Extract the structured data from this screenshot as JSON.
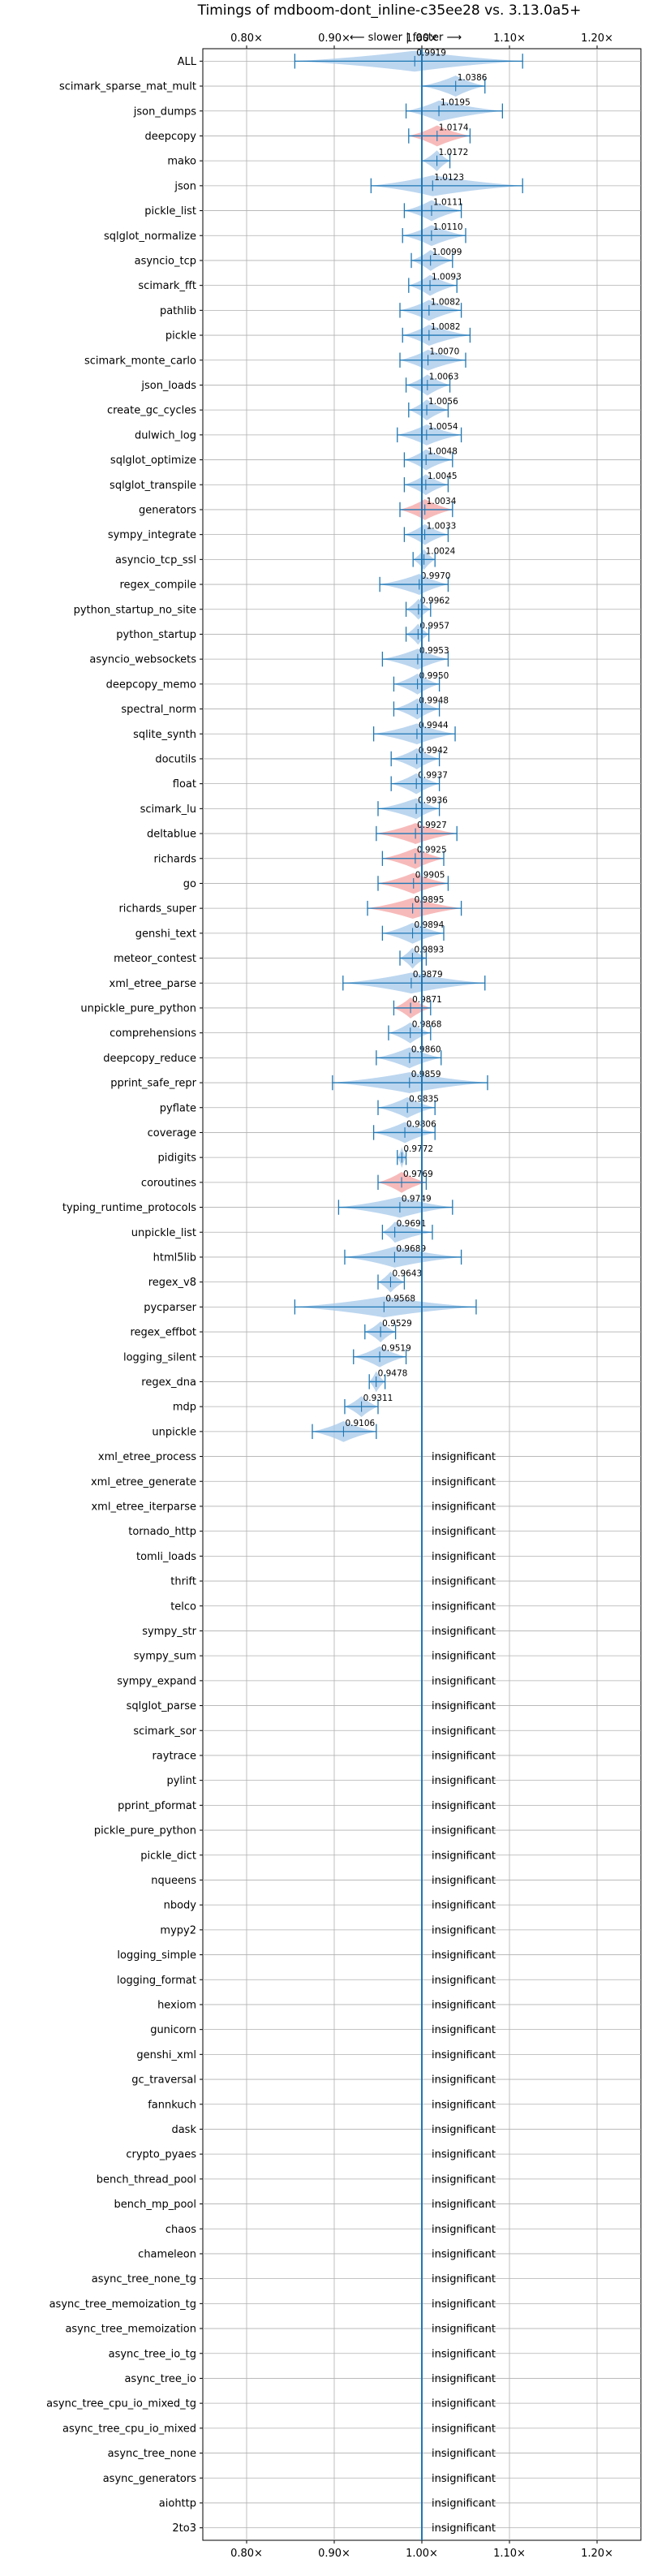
{
  "chart_data": {
    "type": "violin",
    "title": "Timings of mdboom-dont_inline-c35ee28 vs. 3.13.0a5+",
    "direction_label": "⟵ slower | faster ⟶",
    "xlim": [
      0.75,
      1.25
    ],
    "xticks": [
      {
        "value": 0.8,
        "label": "0.80×"
      },
      {
        "value": 0.9,
        "label": "0.90×"
      },
      {
        "value": 1.0,
        "label": "1.00×"
      },
      {
        "value": 1.1,
        "label": "1.10×"
      },
      {
        "value": 1.2,
        "label": "1.20×"
      }
    ],
    "reference_line": 1.0,
    "grid": true,
    "colors": {
      "faster_fill": "#a6c8ea",
      "slower_fill": "#f4a3a3",
      "whisker": "#1f77b4",
      "grid": "#b0b0b0",
      "reference": "#1f77b4"
    },
    "significant": [
      {
        "name": "ALL",
        "value": 0.9919,
        "label": "0.9919",
        "lo": 0.855,
        "hi": 1.115,
        "status": "neutral"
      },
      {
        "name": "scimark_sparse_mat_mult",
        "value": 1.0386,
        "label": "1.0386",
        "lo": 1.0,
        "hi": 1.072,
        "status": "faster"
      },
      {
        "name": "json_dumps",
        "value": 1.0195,
        "label": "1.0195",
        "lo": 0.982,
        "hi": 1.092,
        "status": "faster"
      },
      {
        "name": "deepcopy",
        "value": 1.0174,
        "label": "1.0174",
        "lo": 0.985,
        "hi": 1.055,
        "status": "slower"
      },
      {
        "name": "mako",
        "value": 1.0172,
        "label": "1.0172",
        "lo": 1.0,
        "hi": 1.032,
        "status": "faster"
      },
      {
        "name": "json",
        "value": 1.0123,
        "label": "1.0123",
        "lo": 0.942,
        "hi": 1.115,
        "status": "faster"
      },
      {
        "name": "pickle_list",
        "value": 1.0111,
        "label": "1.0111",
        "lo": 0.98,
        "hi": 1.045,
        "status": "faster"
      },
      {
        "name": "sqlglot_normalize",
        "value": 1.011,
        "label": "1.0110",
        "lo": 0.978,
        "hi": 1.05,
        "status": "faster"
      },
      {
        "name": "asyncio_tcp",
        "value": 1.0099,
        "label": "1.0099",
        "lo": 0.988,
        "hi": 1.035,
        "status": "faster"
      },
      {
        "name": "scimark_fft",
        "value": 1.0093,
        "label": "1.0093",
        "lo": 0.985,
        "hi": 1.04,
        "status": "faster"
      },
      {
        "name": "pathlib",
        "value": 1.0082,
        "label": "1.0082",
        "lo": 0.975,
        "hi": 1.045,
        "status": "faster"
      },
      {
        "name": "pickle",
        "value": 1.0082,
        "label": "1.0082",
        "lo": 0.978,
        "hi": 1.055,
        "status": "faster"
      },
      {
        "name": "scimark_monte_carlo",
        "value": 1.007,
        "label": "1.0070",
        "lo": 0.975,
        "hi": 1.05,
        "status": "faster"
      },
      {
        "name": "json_loads",
        "value": 1.0063,
        "label": "1.0063",
        "lo": 0.982,
        "hi": 1.032,
        "status": "faster"
      },
      {
        "name": "create_gc_cycles",
        "value": 1.0056,
        "label": "1.0056",
        "lo": 0.985,
        "hi": 1.03,
        "status": "faster"
      },
      {
        "name": "dulwich_log",
        "value": 1.0054,
        "label": "1.0054",
        "lo": 0.972,
        "hi": 1.045,
        "status": "faster"
      },
      {
        "name": "sqlglot_optimize",
        "value": 1.0048,
        "label": "1.0048",
        "lo": 0.98,
        "hi": 1.035,
        "status": "faster"
      },
      {
        "name": "sqlglot_transpile",
        "value": 1.0045,
        "label": "1.0045",
        "lo": 0.98,
        "hi": 1.03,
        "status": "faster"
      },
      {
        "name": "generators",
        "value": 1.0034,
        "label": "1.0034",
        "lo": 0.975,
        "hi": 1.035,
        "status": "slower"
      },
      {
        "name": "sympy_integrate",
        "value": 1.0033,
        "label": "1.0033",
        "lo": 0.98,
        "hi": 1.03,
        "status": "faster"
      },
      {
        "name": "asyncio_tcp_ssl",
        "value": 1.0024,
        "label": "1.0024",
        "lo": 0.99,
        "hi": 1.015,
        "status": "faster"
      },
      {
        "name": "regex_compile",
        "value": 0.997,
        "label": "0.9970",
        "lo": 0.952,
        "hi": 1.03,
        "status": "faster"
      },
      {
        "name": "python_startup_no_site",
        "value": 0.9962,
        "label": "0.9962",
        "lo": 0.982,
        "hi": 1.01,
        "status": "faster"
      },
      {
        "name": "python_startup",
        "value": 0.9957,
        "label": "0.9957",
        "lo": 0.982,
        "hi": 1.008,
        "status": "faster"
      },
      {
        "name": "asyncio_websockets",
        "value": 0.9953,
        "label": "0.9953",
        "lo": 0.955,
        "hi": 1.03,
        "status": "faster"
      },
      {
        "name": "deepcopy_memo",
        "value": 0.995,
        "label": "0.9950",
        "lo": 0.968,
        "hi": 1.02,
        "status": "faster"
      },
      {
        "name": "spectral_norm",
        "value": 0.9948,
        "label": "0.9948",
        "lo": 0.968,
        "hi": 1.02,
        "status": "faster"
      },
      {
        "name": "sqlite_synth",
        "value": 0.9944,
        "label": "0.9944",
        "lo": 0.945,
        "hi": 1.038,
        "status": "faster"
      },
      {
        "name": "docutils",
        "value": 0.9942,
        "label": "0.9942",
        "lo": 0.965,
        "hi": 1.02,
        "status": "faster"
      },
      {
        "name": "float",
        "value": 0.9937,
        "label": "0.9937",
        "lo": 0.965,
        "hi": 1.02,
        "status": "faster"
      },
      {
        "name": "scimark_lu",
        "value": 0.9936,
        "label": "0.9936",
        "lo": 0.95,
        "hi": 1.02,
        "status": "faster"
      },
      {
        "name": "deltablue",
        "value": 0.9927,
        "label": "0.9927",
        "lo": 0.948,
        "hi": 1.04,
        "status": "slower"
      },
      {
        "name": "richards",
        "value": 0.9925,
        "label": "0.9925",
        "lo": 0.955,
        "hi": 1.025,
        "status": "slower"
      },
      {
        "name": "go",
        "value": 0.9905,
        "label": "0.9905",
        "lo": 0.95,
        "hi": 1.03,
        "status": "slower"
      },
      {
        "name": "richards_super",
        "value": 0.9895,
        "label": "0.9895",
        "lo": 0.938,
        "hi": 1.045,
        "status": "slower"
      },
      {
        "name": "genshi_text",
        "value": 0.9894,
        "label": "0.9894",
        "lo": 0.955,
        "hi": 1.025,
        "status": "faster"
      },
      {
        "name": "meteor_contest",
        "value": 0.9893,
        "label": "0.9893",
        "lo": 0.975,
        "hi": 1.005,
        "status": "faster"
      },
      {
        "name": "xml_etree_parse",
        "value": 0.9879,
        "label": "0.9879",
        "lo": 0.91,
        "hi": 1.072,
        "status": "faster"
      },
      {
        "name": "unpickle_pure_python",
        "value": 0.9871,
        "label": "0.9871",
        "lo": 0.968,
        "hi": 1.01,
        "status": "slower"
      },
      {
        "name": "comprehensions",
        "value": 0.9868,
        "label": "0.9868",
        "lo": 0.962,
        "hi": 1.01,
        "status": "faster"
      },
      {
        "name": "deepcopy_reduce",
        "value": 0.986,
        "label": "0.9860",
        "lo": 0.948,
        "hi": 1.022,
        "status": "faster"
      },
      {
        "name": "pprint_safe_repr",
        "value": 0.9859,
        "label": "0.9859",
        "lo": 0.898,
        "hi": 1.075,
        "status": "faster"
      },
      {
        "name": "pyflate",
        "value": 0.9835,
        "label": "0.9835",
        "lo": 0.95,
        "hi": 1.015,
        "status": "faster"
      },
      {
        "name": "coverage",
        "value": 0.9806,
        "label": "0.9806",
        "lo": 0.945,
        "hi": 1.015,
        "status": "faster"
      },
      {
        "name": "pidigits",
        "value": 0.9772,
        "label": "0.9772",
        "lo": 0.972,
        "hi": 0.982,
        "status": "faster"
      },
      {
        "name": "coroutines",
        "value": 0.9769,
        "label": "0.9769",
        "lo": 0.95,
        "hi": 1.005,
        "status": "slower"
      },
      {
        "name": "typing_runtime_protocols",
        "value": 0.9749,
        "label": "0.9749",
        "lo": 0.905,
        "hi": 1.035,
        "status": "faster"
      },
      {
        "name": "unpickle_list",
        "value": 0.9691,
        "label": "0.9691",
        "lo": 0.955,
        "hi": 1.012,
        "status": "faster"
      },
      {
        "name": "html5lib",
        "value": 0.9689,
        "label": "0.9689",
        "lo": 0.912,
        "hi": 1.045,
        "status": "faster"
      },
      {
        "name": "regex_v8",
        "value": 0.9643,
        "label": "0.9643",
        "lo": 0.95,
        "hi": 0.98,
        "status": "faster"
      },
      {
        "name": "pycparser",
        "value": 0.9568,
        "label": "0.9568",
        "lo": 0.855,
        "hi": 1.062,
        "status": "faster"
      },
      {
        "name": "regex_effbot",
        "value": 0.9529,
        "label": "0.9529",
        "lo": 0.935,
        "hi": 0.97,
        "status": "faster"
      },
      {
        "name": "logging_silent",
        "value": 0.9519,
        "label": "0.9519",
        "lo": 0.922,
        "hi": 0.982,
        "status": "faster"
      },
      {
        "name": "regex_dna",
        "value": 0.9478,
        "label": "0.9478",
        "lo": 0.94,
        "hi": 0.958,
        "status": "faster"
      },
      {
        "name": "mdp",
        "value": 0.9311,
        "label": "0.9311",
        "lo": 0.912,
        "hi": 0.95,
        "status": "faster"
      },
      {
        "name": "unpickle",
        "value": 0.9106,
        "label": "0.9106",
        "lo": 0.875,
        "hi": 0.948,
        "status": "faster"
      }
    ],
    "insignificant_label": "insignificant",
    "insignificant": [
      "xml_etree_process",
      "xml_etree_generate",
      "xml_etree_iterparse",
      "tornado_http",
      "tomli_loads",
      "thrift",
      "telco",
      "sympy_str",
      "sympy_sum",
      "sympy_expand",
      "sqlglot_parse",
      "scimark_sor",
      "raytrace",
      "pylint",
      "pprint_pformat",
      "pickle_pure_python",
      "pickle_dict",
      "nqueens",
      "nbody",
      "mypy2",
      "logging_simple",
      "logging_format",
      "hexiom",
      "gunicorn",
      "genshi_xml",
      "gc_traversal",
      "fannkuch",
      "dask",
      "crypto_pyaes",
      "bench_thread_pool",
      "bench_mp_pool",
      "chaos",
      "chameleon",
      "async_tree_none_tg",
      "async_tree_memoization_tg",
      "async_tree_memoization",
      "async_tree_io_tg",
      "async_tree_io",
      "async_tree_cpu_io_mixed_tg",
      "async_tree_cpu_io_mixed",
      "async_tree_none",
      "async_generators",
      "aiohttp",
      "2to3"
    ]
  }
}
